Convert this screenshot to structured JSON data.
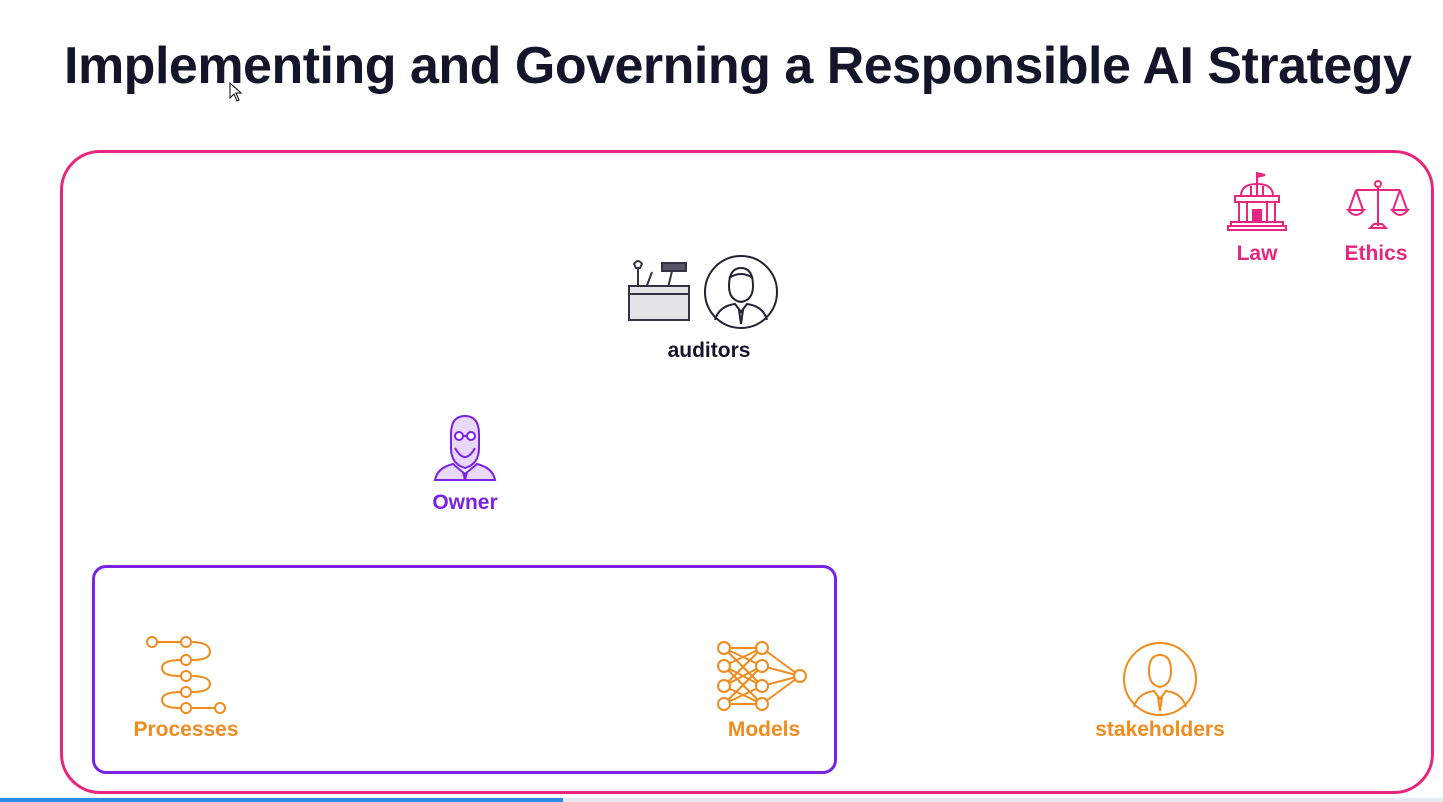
{
  "title": "Implementing and Governing a Responsible AI Strategy",
  "nodes": {
    "law": {
      "label": "Law",
      "icon": "government-building-icon"
    },
    "ethics": {
      "label": "Ethics",
      "icon": "balance-scale-icon"
    },
    "auditors": {
      "label": "auditors",
      "icons": [
        "toolbox-icon",
        "person-avatar-icon"
      ]
    },
    "owner": {
      "label": "Owner",
      "icon": "bearded-person-icon"
    },
    "processes": {
      "label": "Processes",
      "icon": "process-flow-icon"
    },
    "models": {
      "label": "Models",
      "icon": "neural-network-icon"
    },
    "stakeholders": {
      "label": "stakeholders",
      "icon": "person-avatar-icon"
    }
  },
  "colors": {
    "title": "#14142b",
    "governance_frame": "#e8267f",
    "owner_frame": "#7a22e6",
    "assets": "#f08c1e",
    "progress": "#2a8be8"
  },
  "video_progress": 0.39
}
